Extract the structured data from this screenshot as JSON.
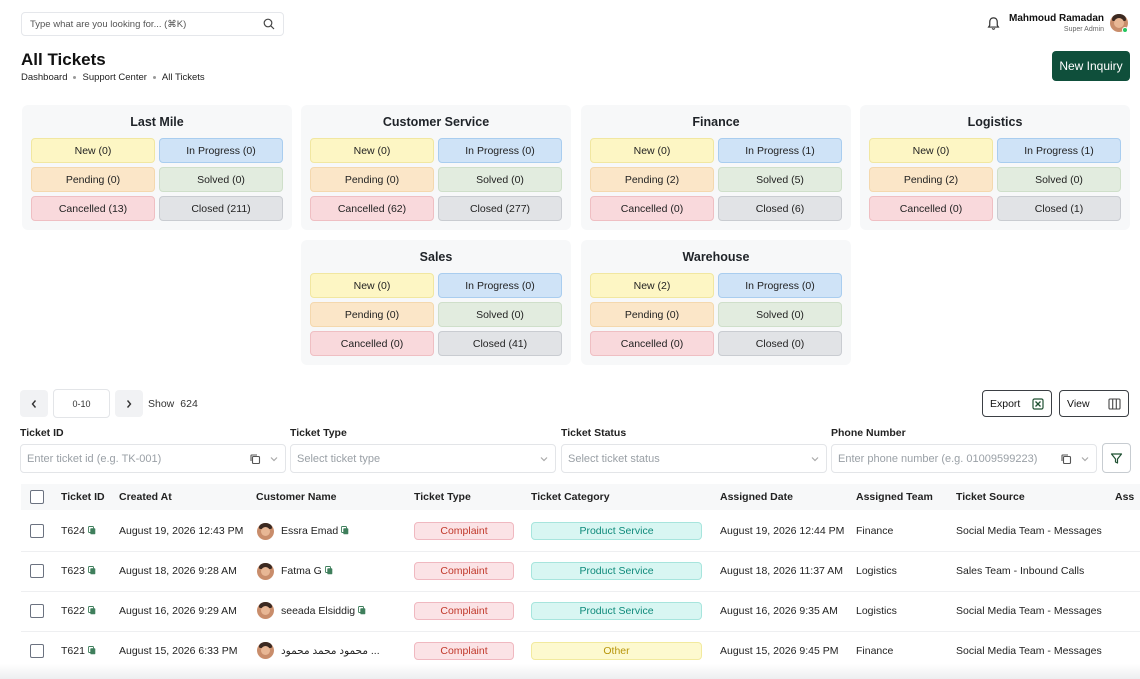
{
  "search": {
    "placeholder": "Type what are you looking for...  (⌘K)"
  },
  "user": {
    "name": "Mahmoud Ramadan",
    "role": "Super Admin"
  },
  "page": {
    "title": "All Tickets",
    "new_inquiry_label": "New Inquiry"
  },
  "breadcrumb": [
    "Dashboard",
    "Support Center",
    "All Tickets"
  ],
  "departments": [
    {
      "name": "Last Mile",
      "new": "New (0)",
      "in_progress": "In Progress (0)",
      "pending": "Pending (0)",
      "solved": "Solved (0)",
      "cancelled": "Cancelled (13)",
      "closed": "Closed (211)"
    },
    {
      "name": "Customer Service",
      "new": "New (0)",
      "in_progress": "In Progress (0)",
      "pending": "Pending (0)",
      "solved": "Solved (0)",
      "cancelled": "Cancelled (62)",
      "closed": "Closed (277)"
    },
    {
      "name": "Finance",
      "new": "New (0)",
      "in_progress": "In Progress (1)",
      "pending": "Pending (2)",
      "solved": "Solved (5)",
      "cancelled": "Cancelled (0)",
      "closed": "Closed (6)"
    },
    {
      "name": "Logistics",
      "new": "New (0)",
      "in_progress": "In Progress (1)",
      "pending": "Pending (2)",
      "solved": "Solved (0)",
      "cancelled": "Cancelled (0)",
      "closed": "Closed (1)"
    },
    {
      "name": "Sales",
      "new": "New (0)",
      "in_progress": "In Progress (0)",
      "pending": "Pending (0)",
      "solved": "Solved (0)",
      "cancelled": "Cancelled (0)",
      "closed": "Closed (41)"
    },
    {
      "name": "Warehouse",
      "new": "New (2)",
      "in_progress": "In Progress (0)",
      "pending": "Pending (0)",
      "solved": "Solved (0)",
      "cancelled": "Cancelled (0)",
      "closed": "Closed (0)"
    }
  ],
  "pagination": {
    "prev_icon": "chevron-left-icon",
    "range": "0-10",
    "next_icon": "chevron-right-icon",
    "show_label": "Show",
    "show_count": "624"
  },
  "toolbar": {
    "export_label": "Export",
    "view_label": "View"
  },
  "filters": {
    "ticket_id": {
      "label": "Ticket ID",
      "placeholder": "Enter ticket id (e.g. TK-001)"
    },
    "ticket_type": {
      "label": "Ticket Type",
      "placeholder": "Select ticket type"
    },
    "ticket_status": {
      "label": "Ticket Status",
      "placeholder": "Select ticket status"
    },
    "phone": {
      "label": "Phone Number",
      "placeholder": "Enter phone number (e.g. 01009599223)"
    }
  },
  "table": {
    "headers": [
      "Ticket ID",
      "Created At",
      "Customer Name",
      "Ticket Type",
      "Ticket Category",
      "Assigned Date",
      "Assigned Team",
      "Ticket Source",
      "Ass"
    ],
    "rows": [
      {
        "id": "T624",
        "created": "August 19, 2026 12:43 PM",
        "customer": "Essra Emad",
        "type": "Complaint",
        "category": "Product Service",
        "assigned_date": "August 19, 2026 12:44 PM",
        "team": "Finance",
        "source": "Social Media Team - Messages"
      },
      {
        "id": "T623",
        "created": "August 18, 2026 9:28 AM",
        "customer": "Fatma G",
        "type": "Complaint",
        "category": "Product Service",
        "assigned_date": "August 18, 2026 11:37 AM",
        "team": "Logistics",
        "source": "Sales Team - Inbound Calls"
      },
      {
        "id": "T622",
        "created": "August 16, 2026 9:29 AM",
        "customer": "seeada Elsiddig",
        "type": "Complaint",
        "category": "Product Service",
        "assigned_date": "August 16, 2026 9:35 AM",
        "team": "Logistics",
        "source": "Social Media Team - Messages"
      },
      {
        "id": "T621",
        "created": "August 15, 2026 6:33 PM",
        "customer": "محمود محمد محمود ...",
        "type": "Complaint",
        "category": "Other",
        "assigned_date": "August 15, 2026 9:45 PM",
        "team": "Finance",
        "source": "Social Media Team - Messages"
      }
    ]
  },
  "colors": {
    "primary": "#0f4f3b",
    "complaint": "#c0392b",
    "category_product": "#0e8a7a",
    "category_other": "#b7950b"
  }
}
